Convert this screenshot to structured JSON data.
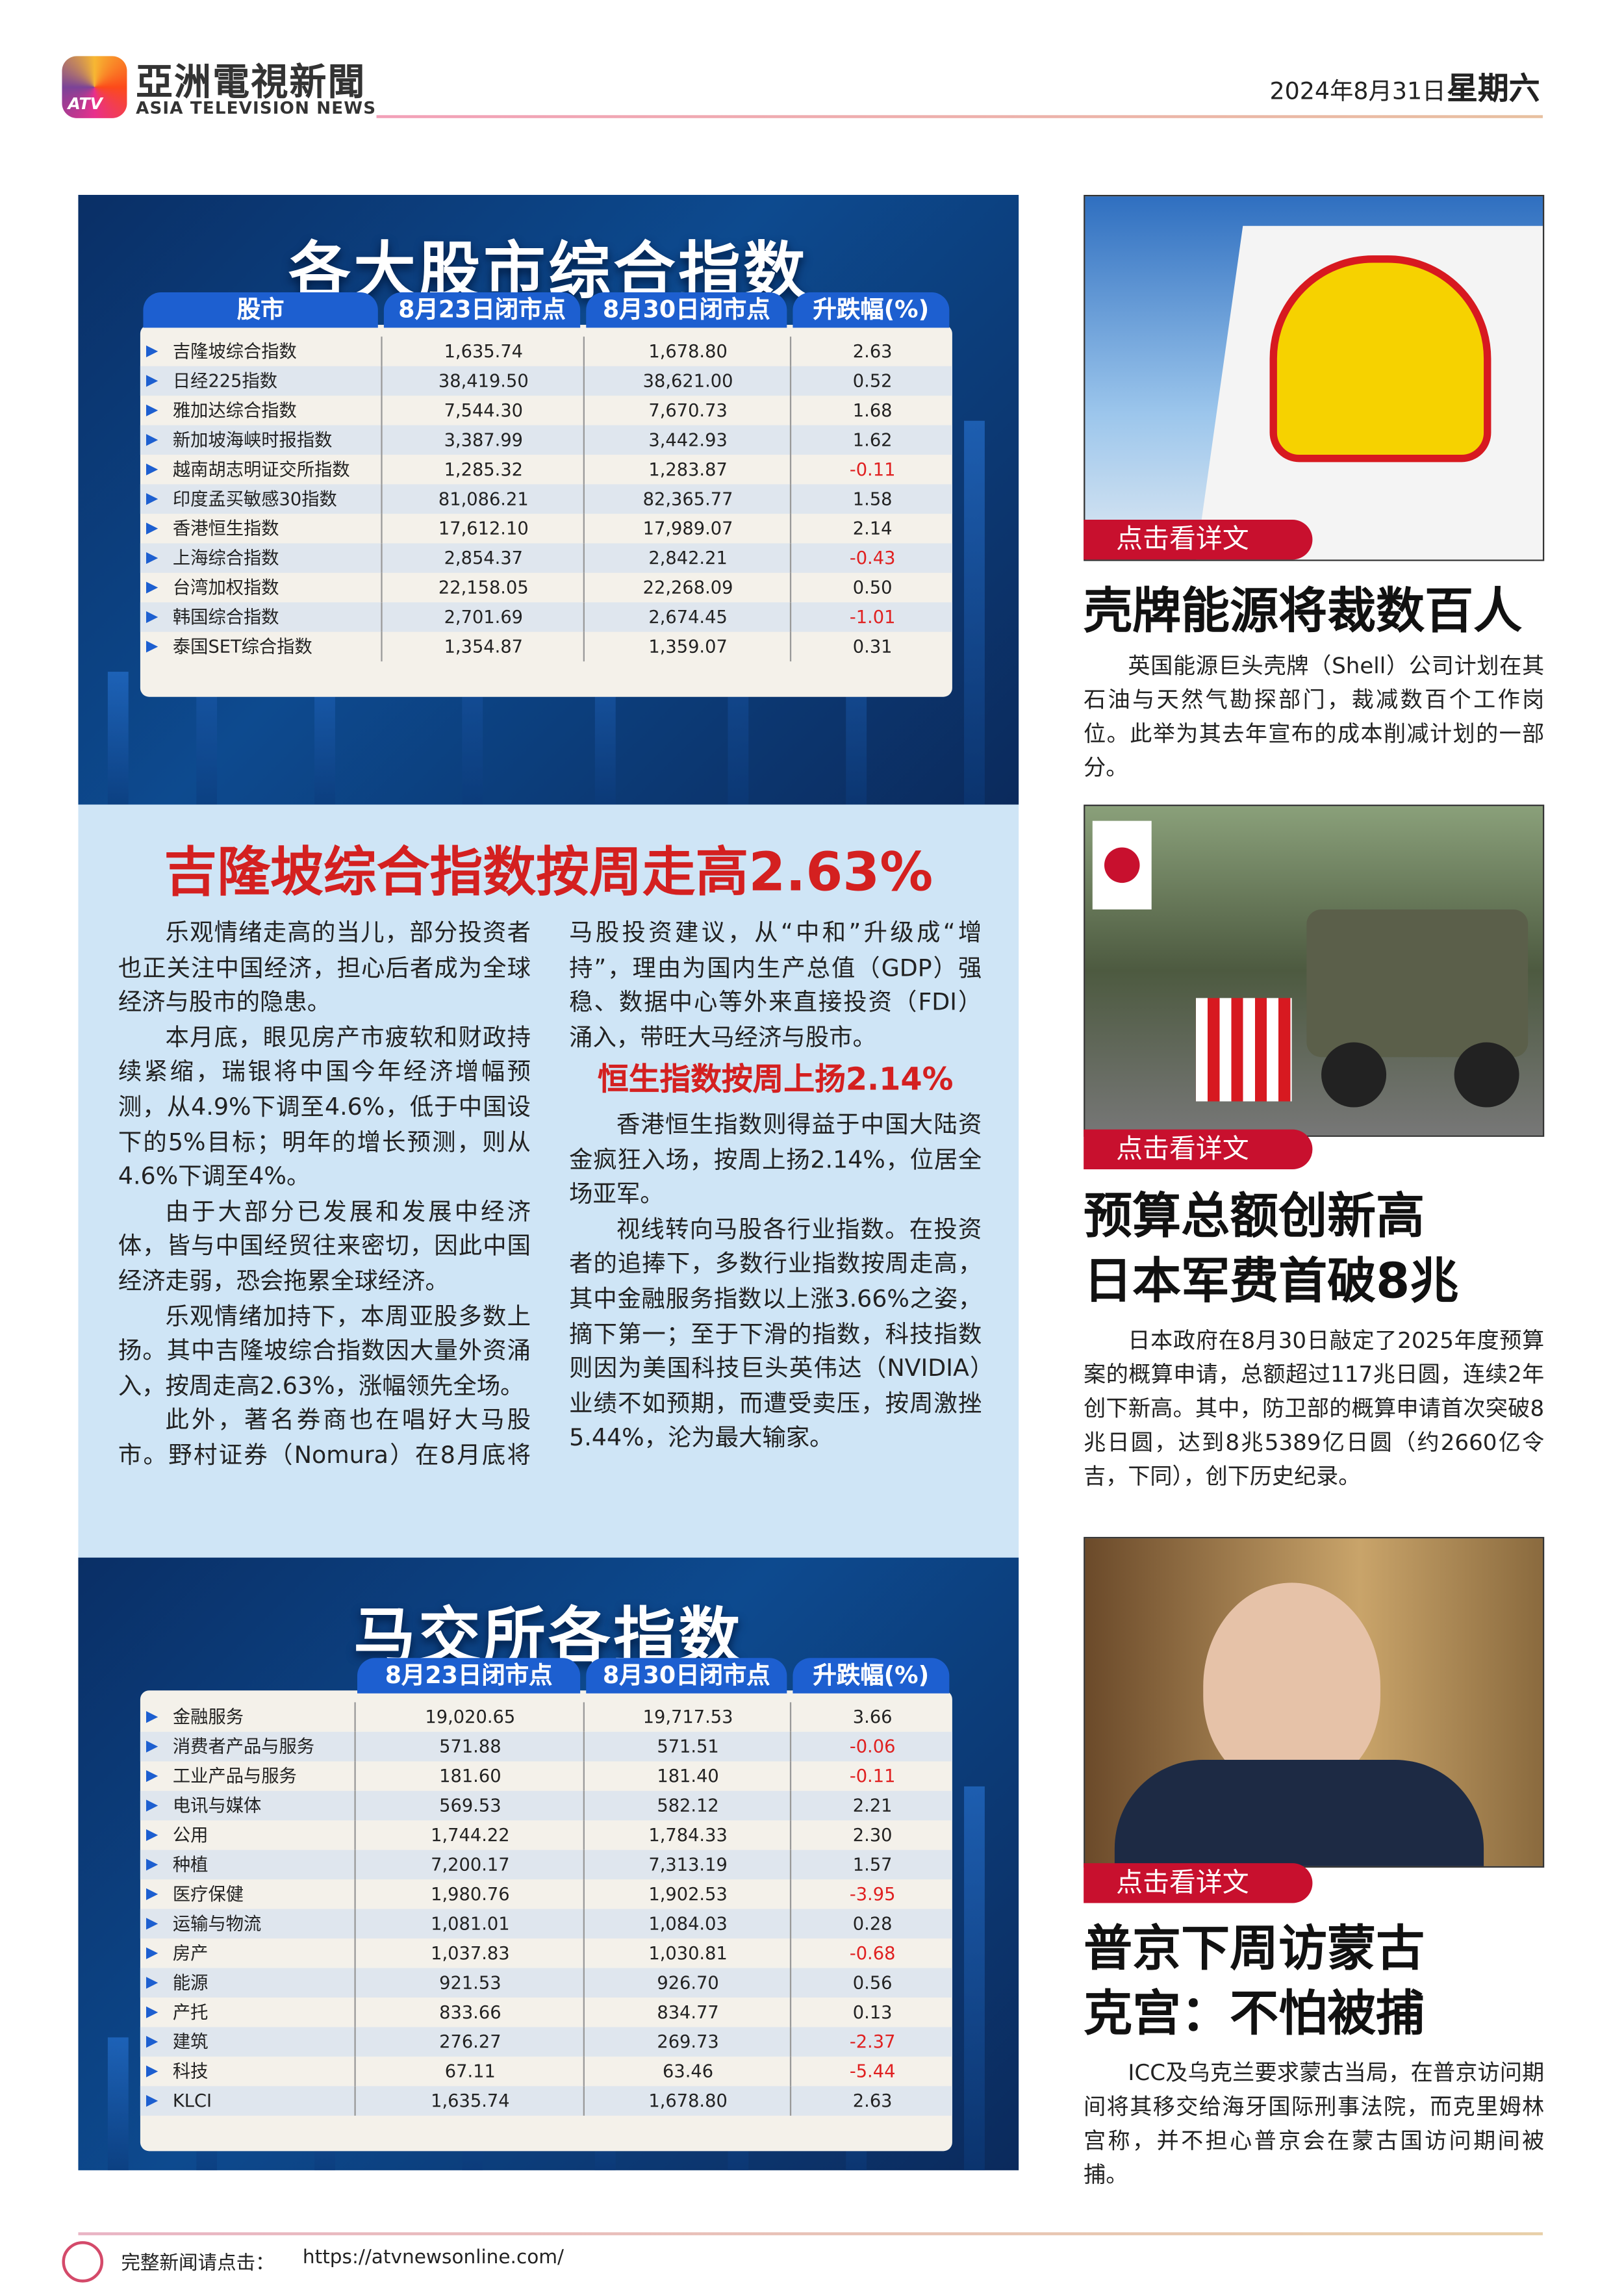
{
  "header": {
    "logo": "ATV",
    "brand_cn": "亞洲電視新聞",
    "brand_en": "ASIA TELEVISION NEWS",
    "date": "2024年8月31日",
    "weekday": "星期六"
  },
  "table1": {
    "title": "各大股市综合指数",
    "headers": [
      "股市",
      "8月23日闭市点",
      "8月30日闭市点",
      "升跌幅(%)"
    ],
    "rows": [
      [
        "吉隆坡综合指数",
        "1,635.74",
        "1,678.80",
        "2.63"
      ],
      [
        "日经225指数",
        "38,419.50",
        "38,621.00",
        "0.52"
      ],
      [
        "雅加达综合指数",
        "7,544.30",
        "7,670.73",
        "1.68"
      ],
      [
        "新加坡海峡时报指数",
        "3,387.99",
        "3,442.93",
        "1.62"
      ],
      [
        "越南胡志明证交所指数",
        "1,285.32",
        "1,283.87",
        "-0.11"
      ],
      [
        "印度孟买敏感30指数",
        "81,086.21",
        "82,365.77",
        "1.58"
      ],
      [
        "香港恒生指数",
        "17,612.10",
        "17,989.07",
        "2.14"
      ],
      [
        "上海综合指数",
        "2,854.37",
        "2,842.21",
        "-0.43"
      ],
      [
        "台湾加权指数",
        "22,158.05",
        "22,268.09",
        "0.50"
      ],
      [
        "韩国综合指数",
        "2,701.69",
        "2,674.45",
        "-1.01"
      ],
      [
        "泰国SET综合指数",
        "1,354.87",
        "1,359.07",
        "0.31"
      ]
    ]
  },
  "article": {
    "headline": "吉隆坡综合指数按周走高2.63%",
    "paragraphs": [
      "乐观情绪走高的当儿，部分投资者也正关注中国经济，担心后者成为全球经济与股市的隐患。",
      "本月底，眼见房产市疲软和财政持续紧缩，瑞银将中国今年经济增幅预测，从4.9%下调至4.6%，低于中国设下的5%目标；明年的增长预测，则从4.6%下调至4%。",
      "由于大部分已发展和发展中经济体，皆与中国经贸往来密切，因此中国经济走弱，恐会拖累全球经济。",
      "乐观情绪加持下，本周亚股多数上扬。其中吉隆坡综合指数因大量外资涌入，按周走高2.63%，涨幅领先全场。",
      "此外，著名券商也在唱好大马股市。野村证券（Nomura）在8月底将马股投资建议，从“中和”升级成“增持”，理由为国内生产总值（GDP）强稳、数据中心等外来直接投资（FDI）涌入，带旺大马经济与股市。"
    ],
    "subheading": "恒生指数按周上扬2.14%",
    "paragraphs2": [
      "香港恒生指数则得益于中国大陆资金疯狂入场，按周上扬2.14%，位居全场亚军。",
      "视线转向马股各行业指数。在投资者的追捧下，多数行业指数按周走高，其中金融服务指数以上涨3.66%之姿，摘下第一；至于下滑的指数，科技指数则因为美国科技巨头英伟达（NVIDIA）业绩不如预期，而遭受卖压，按周激挫5.44%，沦为最大输家。"
    ]
  },
  "table2": {
    "title": "马交所各指数",
    "headers": [
      null,
      "8月23日闭市点",
      "8月30日闭市点",
      "升跌幅(%)"
    ],
    "rows": [
      [
        "金融服务",
        "19,020.65",
        "19,717.53",
        "3.66"
      ],
      [
        "消费者产品与服务",
        "571.88",
        "571.51",
        "-0.06"
      ],
      [
        "工业产品与服务",
        "181.60",
        "181.40",
        "-0.11"
      ],
      [
        "电讯与媒体",
        "569.53",
        "582.12",
        "2.21"
      ],
      [
        "公用",
        "1,744.22",
        "1,784.33",
        "2.30"
      ],
      [
        "种植",
        "7,200.17",
        "7,313.19",
        "1.57"
      ],
      [
        "医疗保健",
        "1,980.76",
        "1,902.53",
        "-3.95"
      ],
      [
        "运输与物流",
        "1,081.01",
        "1,084.03",
        "0.28"
      ],
      [
        "房产",
        "1,037.83",
        "1,030.81",
        "-0.68"
      ],
      [
        "能源",
        "921.53",
        "926.70",
        "0.56"
      ],
      [
        "产托",
        "833.66",
        "834.77",
        "0.13"
      ],
      [
        "建筑",
        "276.27",
        "269.73",
        "-2.37"
      ],
      [
        "科技",
        "67.11",
        "63.46",
        "-5.44"
      ],
      [
        "KLCI",
        "1,635.74",
        "1,678.80",
        "2.63"
      ]
    ]
  },
  "stories": [
    {
      "button": "点击看详文",
      "title": [
        "壳牌能源将裁数百人"
      ],
      "body": "英国能源巨头壳牌（Shell）公司计划在其石油与天然气勘探部门，裁减数百个工作岗位。此举为其去年宣布的成本削减计划的一部分。"
    },
    {
      "button": "点击看详文",
      "title": [
        "预算总额创新高",
        "日本军费首破8兆"
      ],
      "body": "日本政府在8月30日敲定了2025年度预算案的概算申请，总额超过117兆日圆，连续2年创下新高。其中，防卫部的概算申请首次突破8兆日圆，达到8兆5389亿日圆（约2660亿令吉，下同），创下历史纪录。"
    },
    {
      "button": "点击看详文",
      "title": [
        "普京下周访蒙古",
        "克宫：不怕被捕"
      ],
      "body": "ICC及乌克兰要求蒙古当局，在普京访问期间将其移交给海牙国际刑事法院，而克里姆林宫称，并不担心普京会在蒙古国访问期间被捕。"
    }
  ],
  "footer": {
    "label": "完整新闻请点击：",
    "url": "https://atvnewsonline.com/"
  }
}
